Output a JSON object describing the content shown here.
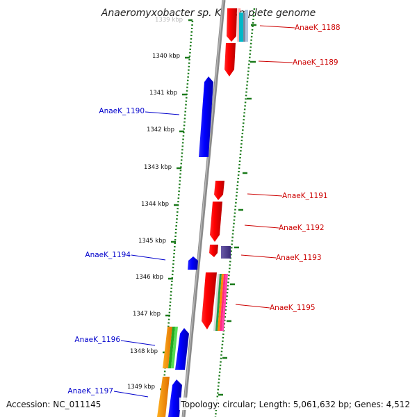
{
  "title": "Anaeromyxobacter sp. K, complete genome",
  "footer": {
    "accession": "Accession: NC_011145",
    "summary": "Topology: circular; Length: 5,061,632 bp; Genes: 4,512"
  },
  "colors": {
    "forward": "#ff0000",
    "reverse": "#0000ff",
    "dotted_track": "#1a7a1a",
    "backbone": "#808080",
    "forward_label": "#cc0000",
    "reverse_label": "#0000cc"
  },
  "scale": {
    "partial_label": "1339 kbp",
    "ticks": [
      "1340 kbp",
      "1341 kbp",
      "1342 kbp",
      "1343 kbp",
      "1344 kbp",
      "1345 kbp",
      "1346 kbp",
      "1347 kbp",
      "1348 kbp",
      "1349 kbp"
    ]
  },
  "genes": {
    "forward": [
      "AnaeK_1188",
      "AnaeK_1189",
      "AnaeK_1191",
      "AnaeK_1192",
      "AnaeK_1193",
      "AnaeK_1195"
    ],
    "reverse": [
      "AnaeK_1190",
      "AnaeK_1194",
      "AnaeK_1196",
      "AnaeK_1197"
    ]
  }
}
